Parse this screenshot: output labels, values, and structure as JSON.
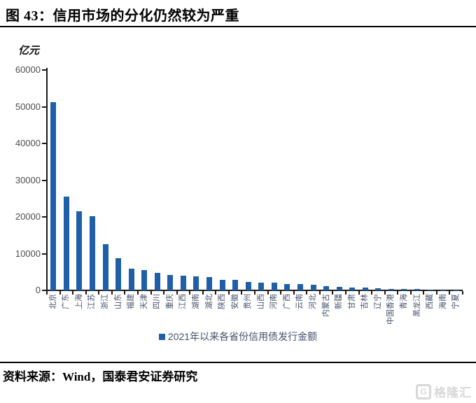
{
  "title": "图 43：信用市场的分化仍然较为严重",
  "unit_label": "亿元",
  "legend": {
    "label": "2021年以来各省份信用债发行金额",
    "marker_color": "#1E5FA8"
  },
  "source": "资料来源：Wind，国泰君安证券研究",
  "watermark": {
    "icon_letter": "G",
    "text": "格隆汇"
  },
  "colors": {
    "bar": "#1E5FA8",
    "axis": "#1a1a1a",
    "y_tick_text": "#4d4d4d",
    "x_tick_text": "#44506B",
    "rule": "#000000"
  },
  "chart_data": {
    "type": "bar",
    "title": "图 43：信用市场的分化仍然较为严重",
    "xlabel": "",
    "ylabel": "亿元",
    "ylim": [
      0,
      60000
    ],
    "yticks": [
      0,
      10000,
      20000,
      30000,
      40000,
      50000,
      60000
    ],
    "grid": false,
    "legend_position": "bottom",
    "series_name": "2021年以来各省份信用债发行金额",
    "categories": [
      "北京",
      "广东",
      "上海",
      "江苏",
      "浙江",
      "山东",
      "福建",
      "天津",
      "四川",
      "重庆",
      "江西",
      "湖南",
      "湖北",
      "陕西",
      "安徽",
      "贵州",
      "山西",
      "河南",
      "广西",
      "云南",
      "河北",
      "内蒙古",
      "新疆",
      "甘肃",
      "吉林",
      "辽宁",
      "中国香港",
      "青海",
      "黑龙江",
      "西藏",
      "海南",
      "宁夏"
    ],
    "values": [
      51300,
      25600,
      21500,
      20100,
      12600,
      8800,
      6000,
      5450,
      4750,
      4100,
      3950,
      3800,
      3600,
      2900,
      2800,
      2350,
      2100,
      2050,
      1750,
      1700,
      1600,
      1100,
      950,
      800,
      700,
      550,
      400,
      320,
      290,
      200,
      80,
      40
    ]
  }
}
